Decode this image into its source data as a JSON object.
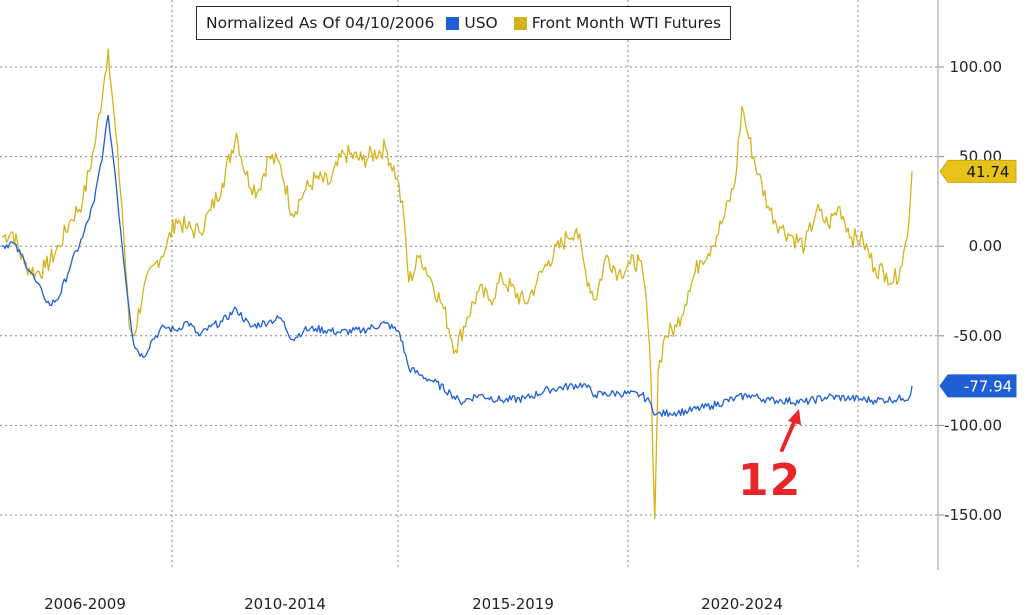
{
  "chart_data": {
    "type": "line",
    "title": "Normalized As Of 04/10/2006",
    "x_categories": [
      "2006-2009",
      "2010-2014",
      "2015-2019",
      "2020-2024"
    ],
    "y_ticks": [
      100.0,
      50.0,
      0.0,
      -50.0,
      -100.0,
      -150.0
    ],
    "y_tick_labels": [
      "100.00",
      "50.00",
      "0.00",
      "-50.00",
      "-100.00",
      "-150.00"
    ],
    "ylim": [
      -172,
      125
    ],
    "xlim": [
      2006.27,
      2025.8
    ],
    "y_axis_side": "right",
    "grid": true,
    "legend_position": "top",
    "series": [
      {
        "name": "USO",
        "color": "#1f5fd6",
        "last_value_label": "-77.94",
        "last_value": -77.94,
        "points": [
          [
            2006.27,
            0
          ],
          [
            2006.5,
            2
          ],
          [
            2006.75,
            -8
          ],
          [
            2007.0,
            -20
          ],
          [
            2007.15,
            -27
          ],
          [
            2007.3,
            -33
          ],
          [
            2007.5,
            -28
          ],
          [
            2007.75,
            -10
          ],
          [
            2008.0,
            5
          ],
          [
            2008.25,
            25
          ],
          [
            2008.45,
            55
          ],
          [
            2008.55,
            73
          ],
          [
            2008.7,
            40
          ],
          [
            2008.85,
            0
          ],
          [
            2009.0,
            -35
          ],
          [
            2009.1,
            -55
          ],
          [
            2009.3,
            -62
          ],
          [
            2009.5,
            -52
          ],
          [
            2009.75,
            -45
          ],
          [
            2010.0,
            -47
          ],
          [
            2010.25,
            -42
          ],
          [
            2010.5,
            -50
          ],
          [
            2010.75,
            -45
          ],
          [
            2011.0,
            -42
          ],
          [
            2011.3,
            -35
          ],
          [
            2011.6,
            -45
          ],
          [
            2012.0,
            -42
          ],
          [
            2012.25,
            -40
          ],
          [
            2012.5,
            -52
          ],
          [
            2012.75,
            -47
          ],
          [
            2013.0,
            -46
          ],
          [
            2013.5,
            -48
          ],
          [
            2014.0,
            -47
          ],
          [
            2014.5,
            -43
          ],
          [
            2014.8,
            -48
          ],
          [
            2015.0,
            -68
          ],
          [
            2015.25,
            -72
          ],
          [
            2015.5,
            -75
          ],
          [
            2015.9,
            -82
          ],
          [
            2016.1,
            -87
          ],
          [
            2016.5,
            -83
          ],
          [
            2017.0,
            -86
          ],
          [
            2017.5,
            -85
          ],
          [
            2018.0,
            -80
          ],
          [
            2018.75,
            -77
          ],
          [
            2019.0,
            -83
          ],
          [
            2019.5,
            -82
          ],
          [
            2020.0,
            -83
          ],
          [
            2020.2,
            -88
          ],
          [
            2020.3,
            -94
          ],
          [
            2020.6,
            -93
          ],
          [
            2021.0,
            -92
          ],
          [
            2021.5,
            -89
          ],
          [
            2022.0,
            -85
          ],
          [
            2022.3,
            -83
          ],
          [
            2022.75,
            -86
          ],
          [
            2023.0,
            -86
          ],
          [
            2023.5,
            -87
          ],
          [
            2024.0,
            -84
          ],
          [
            2024.5,
            -85
          ],
          [
            2025.0,
            -86
          ],
          [
            2025.6,
            -85
          ],
          [
            2025.75,
            -84
          ],
          [
            2025.8,
            -77.94
          ]
        ]
      },
      {
        "name": "Front Month WTI Futures",
        "color": "#d4b31e",
        "last_value_label": "41.74",
        "last_value": 41.74,
        "points": [
          [
            2006.27,
            5
          ],
          [
            2006.5,
            8
          ],
          [
            2006.75,
            -10
          ],
          [
            2007.0,
            -15
          ],
          [
            2007.2,
            -12
          ],
          [
            2007.5,
            0
          ],
          [
            2007.75,
            15
          ],
          [
            2008.0,
            25
          ],
          [
            2008.25,
            55
          ],
          [
            2008.45,
            90
          ],
          [
            2008.55,
            110
          ],
          [
            2008.65,
            80
          ],
          [
            2008.85,
            20
          ],
          [
            2009.0,
            -45
          ],
          [
            2009.1,
            -50
          ],
          [
            2009.3,
            -25
          ],
          [
            2009.6,
            -8
          ],
          [
            2009.8,
            0
          ],
          [
            2010.0,
            15
          ],
          [
            2010.25,
            10
          ],
          [
            2010.5,
            8
          ],
          [
            2010.75,
            20
          ],
          [
            2011.0,
            35
          ],
          [
            2011.3,
            63
          ],
          [
            2011.5,
            40
          ],
          [
            2011.75,
            30
          ],
          [
            2012.0,
            50
          ],
          [
            2012.25,
            45
          ],
          [
            2012.5,
            18
          ],
          [
            2012.75,
            30
          ],
          [
            2013.0,
            38
          ],
          [
            2013.3,
            35
          ],
          [
            2013.6,
            52
          ],
          [
            2014.0,
            48
          ],
          [
            2014.5,
            55
          ],
          [
            2014.75,
            38
          ],
          [
            2014.9,
            15
          ],
          [
            2015.0,
            -20
          ],
          [
            2015.25,
            -5
          ],
          [
            2015.5,
            -20
          ],
          [
            2015.75,
            -35
          ],
          [
            2016.0,
            -58
          ],
          [
            2016.25,
            -40
          ],
          [
            2016.5,
            -25
          ],
          [
            2016.75,
            -30
          ],
          [
            2017.0,
            -18
          ],
          [
            2017.5,
            -32
          ],
          [
            2017.75,
            -20
          ],
          [
            2018.0,
            -8
          ],
          [
            2018.4,
            5
          ],
          [
            2018.6,
            10
          ],
          [
            2018.8,
            -15
          ],
          [
            2019.0,
            -30
          ],
          [
            2019.25,
            -5
          ],
          [
            2019.5,
            -15
          ],
          [
            2019.75,
            -10
          ],
          [
            2019.95,
            -8
          ],
          [
            2020.1,
            -30
          ],
          [
            2020.2,
            -75
          ],
          [
            2020.28,
            -152
          ],
          [
            2020.35,
            -70
          ],
          [
            2020.5,
            -50
          ],
          [
            2020.75,
            -45
          ],
          [
            2021.0,
            -25
          ],
          [
            2021.25,
            -8
          ],
          [
            2021.5,
            0
          ],
          [
            2021.75,
            15
          ],
          [
            2022.0,
            35
          ],
          [
            2022.15,
            78
          ],
          [
            2022.3,
            60
          ],
          [
            2022.5,
            40
          ],
          [
            2022.75,
            20
          ],
          [
            2023.0,
            10
          ],
          [
            2023.25,
            5
          ],
          [
            2023.5,
            0
          ],
          [
            2023.75,
            20
          ],
          [
            2024.0,
            12
          ],
          [
            2024.25,
            22
          ],
          [
            2024.5,
            5
          ],
          [
            2024.75,
            3
          ],
          [
            2025.0,
            -12
          ],
          [
            2025.25,
            -15
          ],
          [
            2025.4,
            -20
          ],
          [
            2025.55,
            -12
          ],
          [
            2025.7,
            5
          ],
          [
            2025.8,
            41.74
          ]
        ]
      }
    ],
    "annotations": [
      {
        "text": "12",
        "color": "#e8262a",
        "target_series": "USO",
        "target_x": 2023.4
      }
    ]
  }
}
